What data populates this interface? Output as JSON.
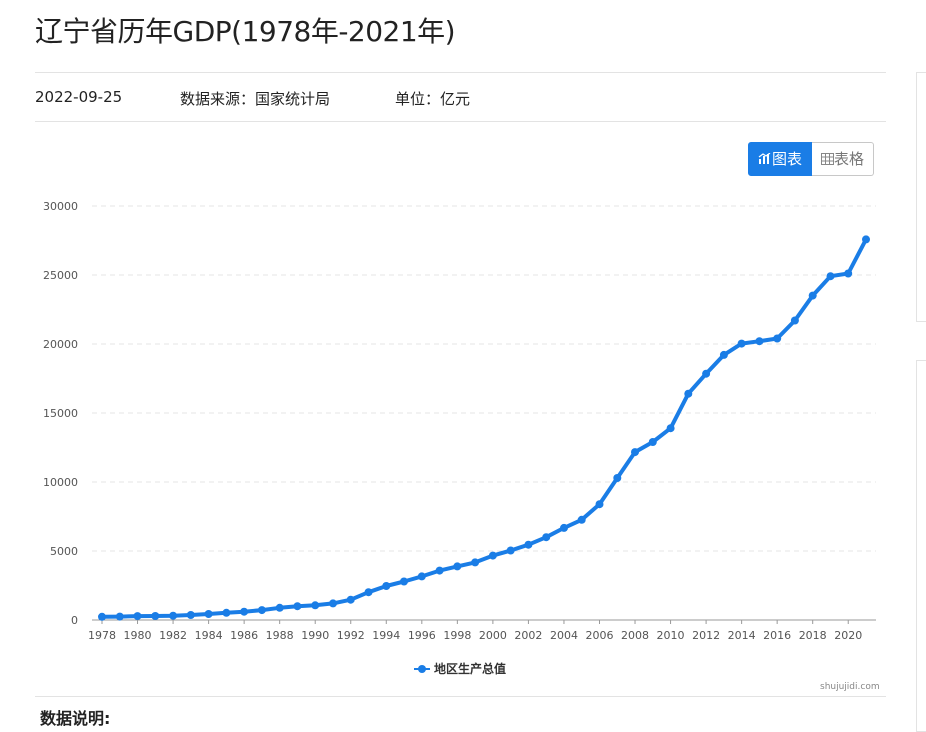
{
  "page": {
    "title": "辽宁省历年GDP(1978年-2021年)",
    "date": "2022-09-25",
    "source": "数据来源：国家统计局",
    "unit": "单位：亿元",
    "section_title": "数据说明:",
    "credit": "shujujidi.com"
  },
  "view_toggle": {
    "chart_label": "图表",
    "table_label": "表格",
    "chart_icon": "bar-chart-icon",
    "table_icon": "table-grid-icon",
    "active": "chart"
  },
  "colors": {
    "accent": "#1a7de6",
    "grid": "#e6e6e6"
  },
  "chart_data": {
    "type": "line",
    "title": "",
    "xlabel": "",
    "ylabel": "",
    "ylim": [
      0,
      30000
    ],
    "yticks": [
      0,
      5000,
      10000,
      15000,
      20000,
      25000,
      30000
    ],
    "xticks": [
      1978,
      1980,
      1982,
      1984,
      1986,
      1988,
      1990,
      1992,
      1994,
      1996,
      1998,
      2000,
      2002,
      2004,
      2006,
      2008,
      2010,
      2012,
      2014,
      2016,
      2018,
      2020
    ],
    "grid": true,
    "legend_position": "bottom",
    "x": [
      1978,
      1979,
      1980,
      1981,
      1982,
      1983,
      1984,
      1985,
      1986,
      1987,
      1988,
      1989,
      1990,
      1991,
      1992,
      1993,
      1994,
      1995,
      1996,
      1997,
      1998,
      1999,
      2000,
      2001,
      2002,
      2003,
      2004,
      2005,
      2006,
      2007,
      2008,
      2009,
      2010,
      2011,
      2012,
      2013,
      2014,
      2015,
      2016,
      2017,
      2018,
      2019,
      2020,
      2021
    ],
    "series": [
      {
        "name": "地区生产总值",
        "values": [
          229,
          245,
          281,
          289,
          315,
          364,
          438,
          519,
          605,
          719,
          881,
          1003,
          1063,
          1201,
          1473,
          2011,
          2462,
          2793,
          3158,
          3582,
          3882,
          4171,
          4669,
          5033,
          5458,
          6003,
          6672,
          7261,
          8390,
          10292,
          12170,
          12900,
          13900,
          16400,
          17850,
          19210,
          20030,
          20200,
          20400,
          21700,
          23510,
          24910,
          25110,
          27580
        ]
      }
    ]
  }
}
